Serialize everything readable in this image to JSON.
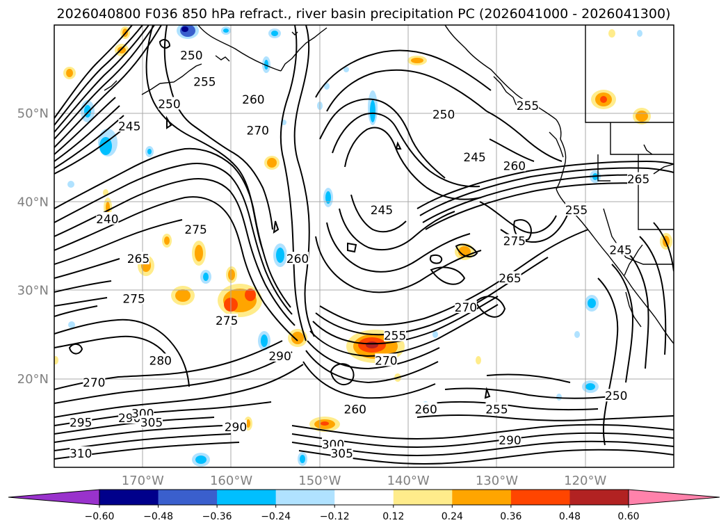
{
  "title": "2026040800 F036 850 hPa refract., river basin precipitation PC (2026041000 - 2026041300)",
  "map": {
    "lon_range": [
      -180,
      -110
    ],
    "lat_range": [
      10,
      60
    ],
    "lat_ticks": [
      {
        "value": 20,
        "label": "20°N"
      },
      {
        "value": 30,
        "label": "30°N"
      },
      {
        "value": 40,
        "label": "40°N"
      },
      {
        "value": 50,
        "label": "50°N"
      }
    ],
    "lon_ticks": [
      {
        "value": -170,
        "label": "170°W"
      },
      {
        "value": -160,
        "label": "160°W"
      },
      {
        "value": -150,
        "label": "150°W"
      },
      {
        "value": -140,
        "label": "140°W"
      },
      {
        "value": -130,
        "label": "130°W"
      },
      {
        "value": -120,
        "label": "120°W"
      }
    ],
    "gridlines": true,
    "contour_labels": [
      {
        "text": "250",
        "lon": -164.5,
        "lat": 56.5
      },
      {
        "text": "255",
        "lon": -163.0,
        "lat": 53.5
      },
      {
        "text": "260",
        "lon": -157.5,
        "lat": 51.5
      },
      {
        "text": "270",
        "lon": -157.0,
        "lat": 48.0
      },
      {
        "text": "250",
        "lon": -136.0,
        "lat": 49.8
      },
      {
        "text": "255",
        "lon": -126.5,
        "lat": 50.8
      },
      {
        "text": "245",
        "lon": -132.5,
        "lat": 45.0
      },
      {
        "text": "260",
        "lon": -128.0,
        "lat": 44.0
      },
      {
        "text": "245",
        "lon": -143.0,
        "lat": 39.0
      },
      {
        "text": "275",
        "lon": -164.0,
        "lat": 36.8
      },
      {
        "text": "265",
        "lon": -170.5,
        "lat": 33.5
      },
      {
        "text": "260",
        "lon": -152.5,
        "lat": 33.5
      },
      {
        "text": "240",
        "lon": -174.0,
        "lat": 38.0
      },
      {
        "text": "245",
        "lon": -171.5,
        "lat": 48.5
      },
      {
        "text": "250",
        "lon": -167.0,
        "lat": 51.0
      },
      {
        "text": "275",
        "lon": -171.0,
        "lat": 29.0
      },
      {
        "text": "275",
        "lon": -160.5,
        "lat": 26.5
      },
      {
        "text": "290",
        "lon": -154.5,
        "lat": 22.5
      },
      {
        "text": "280",
        "lon": -168.0,
        "lat": 22.0
      },
      {
        "text": "270",
        "lon": -175.5,
        "lat": 19.5
      },
      {
        "text": "295",
        "lon": -177.0,
        "lat": 15.0
      },
      {
        "text": "290",
        "lon": -171.5,
        "lat": 15.5
      },
      {
        "text": "300",
        "lon": -170.0,
        "lat": 16.0
      },
      {
        "text": "305",
        "lon": -169.0,
        "lat": 15.0
      },
      {
        "text": "310",
        "lon": -177.0,
        "lat": 11.5
      },
      {
        "text": "290",
        "lon": -159.5,
        "lat": 14.5
      },
      {
        "text": "300",
        "lon": -148.5,
        "lat": 12.5
      },
      {
        "text": "305",
        "lon": -147.5,
        "lat": 11.5
      },
      {
        "text": "260",
        "lon": -146.0,
        "lat": 16.5
      },
      {
        "text": "260",
        "lon": -138.0,
        "lat": 16.5
      },
      {
        "text": "255",
        "lon": -130.0,
        "lat": 16.5
      },
      {
        "text": "255",
        "lon": -141.5,
        "lat": 24.8
      },
      {
        "text": "270",
        "lon": -142.5,
        "lat": 22.0
      },
      {
        "text": "270",
        "lon": -133.5,
        "lat": 28.0
      },
      {
        "text": "265",
        "lon": -128.5,
        "lat": 31.3
      },
      {
        "text": "275",
        "lon": -128.0,
        "lat": 35.5
      },
      {
        "text": "290",
        "lon": -128.5,
        "lat": 13.0
      },
      {
        "text": "250",
        "lon": -116.5,
        "lat": 18.0
      },
      {
        "text": "245",
        "lon": -116.0,
        "lat": 34.5
      },
      {
        "text": "265",
        "lon": -114.0,
        "lat": 42.5
      },
      {
        "text": "255",
        "lon": -121.0,
        "lat": 39.0
      }
    ]
  },
  "colorbar": {
    "ticks": [
      "−0.60",
      "−0.48",
      "−0.36",
      "−0.24",
      "−0.12",
      "0.12",
      "0.24",
      "0.36",
      "0.48",
      "0.60"
    ],
    "colors": [
      "#9932cc",
      "#00008b",
      "#3a5fcd",
      "#00bfff",
      "#b0e2ff",
      "#ffffff",
      "#ffec8b",
      "#ffa500",
      "#ff4500",
      "#b22222",
      "#ff82ab"
    ],
    "extend": "both"
  }
}
